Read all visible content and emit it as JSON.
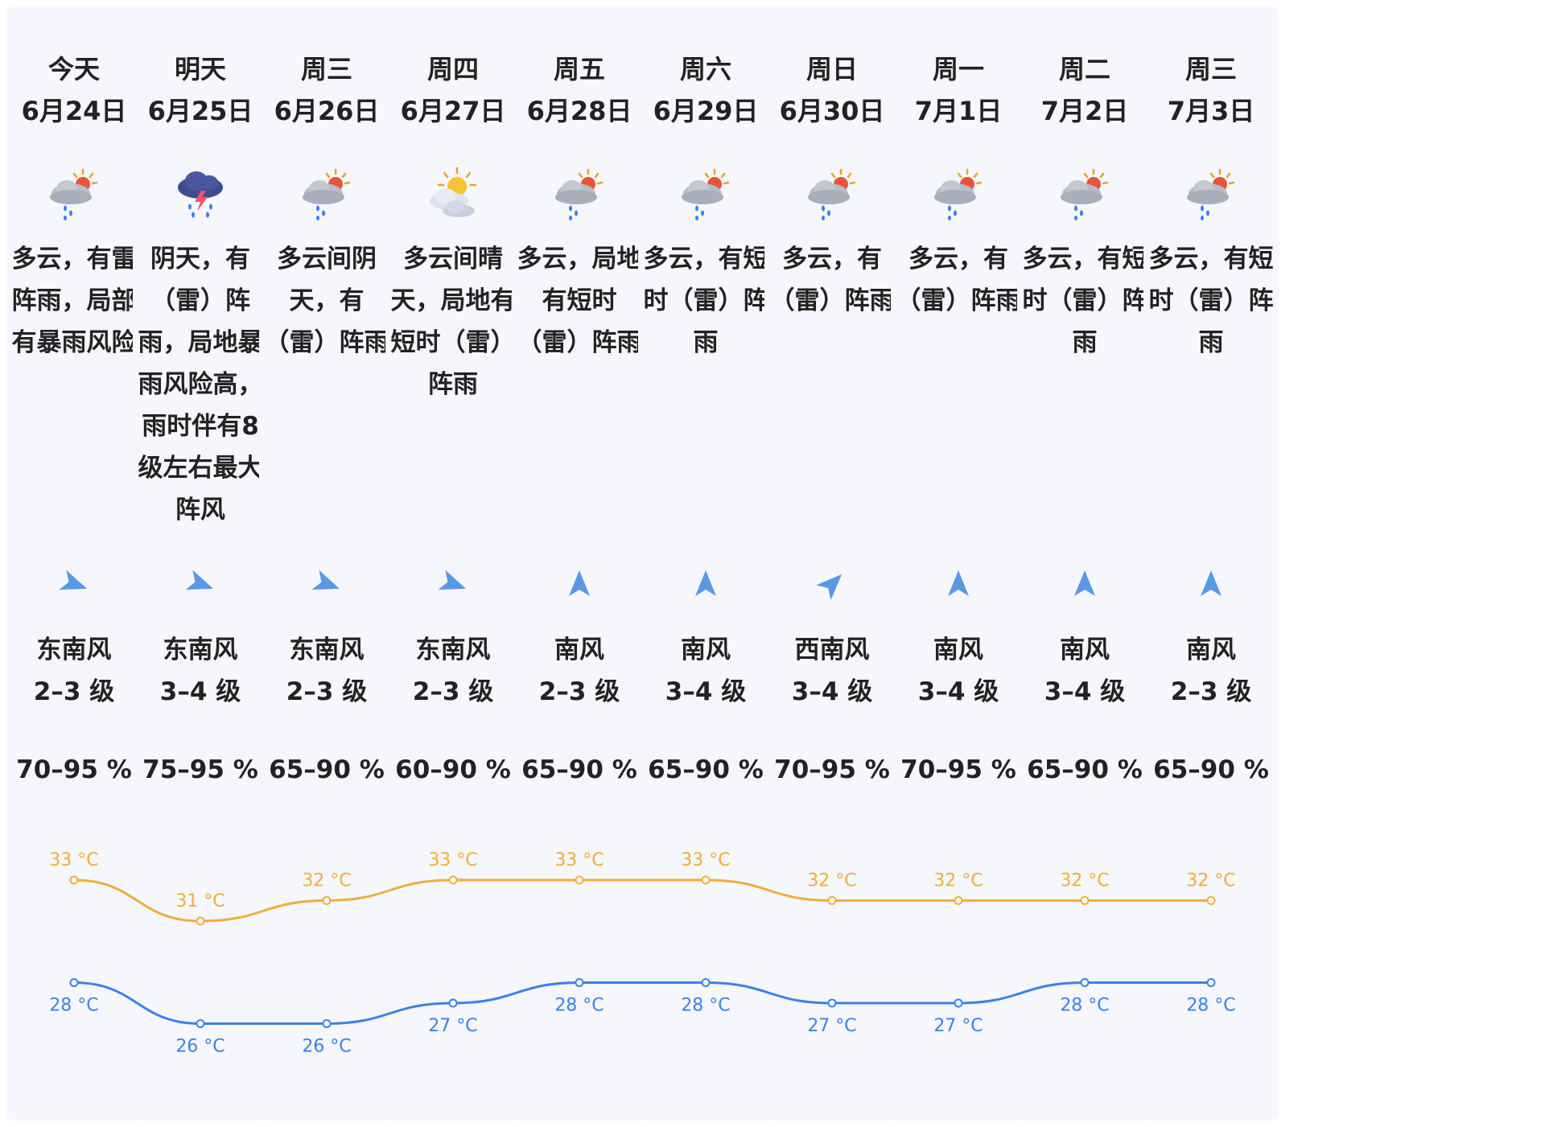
{
  "colors": {
    "high": "#f0ad3c",
    "low": "#3a82e8",
    "card": "#f5f7fc",
    "text": "#222222"
  },
  "days": [
    {
      "name": "今天",
      "date": "6月24日",
      "icon": "cloud-sun-rain-icon",
      "desc_lines": [
        "多云，有雷",
        "阵雨，局部",
        "有暴雨风险"
      ],
      "wind_dir": "东南风",
      "wind_level": "2–3 级",
      "wind_rotation": 110,
      "humidity": "70–95 %",
      "high": "33 °C",
      "low": "28 °C"
    },
    {
      "name": "明天",
      "date": "6月25日",
      "icon": "thunderstorm-icon",
      "desc_lines": [
        "阴天，有",
        "（雷）阵",
        "雨，局地暴",
        "雨风险高，",
        "雨时伴有8",
        "级左右最大",
        "阵风"
      ],
      "wind_dir": "东南风",
      "wind_level": "3–4 级",
      "wind_rotation": 110,
      "humidity": "75–95 %",
      "high": "31 °C",
      "low": "26 °C"
    },
    {
      "name": "周三",
      "date": "6月26日",
      "icon": "cloud-sun-rain-icon",
      "desc_lines": [
        "多云间阴",
        "天，有",
        "（雷）阵雨"
      ],
      "wind_dir": "东南风",
      "wind_level": "2–3 级",
      "wind_rotation": 110,
      "humidity": "65–90 %",
      "high": "32 °C",
      "low": "26 °C"
    },
    {
      "name": "周四",
      "date": "6月27日",
      "icon": "sun-cloud-icon",
      "desc_lines": [
        "多云间晴",
        "天，局地有",
        "短时（雷）",
        "阵雨"
      ],
      "wind_dir": "东南风",
      "wind_level": "2–3 级",
      "wind_rotation": 110,
      "humidity": "60–90 %",
      "high": "33 °C",
      "low": "27 °C"
    },
    {
      "name": "周五",
      "date": "6月28日",
      "icon": "cloud-sun-rain-icon",
      "desc_lines": [
        "多云，局地",
        "有短时",
        "（雷）阵雨"
      ],
      "wind_dir": "南风",
      "wind_level": "2–3 级",
      "wind_rotation": 0,
      "humidity": "65–90 %",
      "high": "33 °C",
      "low": "28 °C"
    },
    {
      "name": "周六",
      "date": "6月29日",
      "icon": "cloud-sun-rain-icon",
      "desc_lines": [
        "多云，有短",
        "时（雷）阵",
        "雨"
      ],
      "wind_dir": "南风",
      "wind_level": "3–4 级",
      "wind_rotation": 0,
      "humidity": "65–90 %",
      "high": "33 °C",
      "low": "28 °C"
    },
    {
      "name": "周日",
      "date": "6月30日",
      "icon": "cloud-sun-rain-icon",
      "desc_lines": [
        "多云，有",
        "（雷）阵雨"
      ],
      "wind_dir": "西南风",
      "wind_level": "3–4 级",
      "wind_rotation": 45,
      "humidity": "70–95 %",
      "high": "32 °C",
      "low": "27 °C"
    },
    {
      "name": "周一",
      "date": "7月1日",
      "icon": "cloud-sun-rain-icon",
      "desc_lines": [
        "多云，有",
        "（雷）阵雨"
      ],
      "wind_dir": "南风",
      "wind_level": "3–4 级",
      "wind_rotation": 0,
      "humidity": "70–95 %",
      "high": "32 °C",
      "low": "27 °C"
    },
    {
      "name": "周二",
      "date": "7月2日",
      "icon": "cloud-sun-rain-icon",
      "desc_lines": [
        "多云，有短",
        "时（雷）阵",
        "雨"
      ],
      "wind_dir": "南风",
      "wind_level": "3–4 级",
      "wind_rotation": 0,
      "humidity": "65–90 %",
      "high": "32 °C",
      "low": "28 °C"
    },
    {
      "name": "周三",
      "date": "7月3日",
      "icon": "cloud-sun-rain-icon",
      "desc_lines": [
        "多云，有短",
        "时（雷）阵",
        "雨"
      ],
      "wind_dir": "南风",
      "wind_level": "2–3 级",
      "wind_rotation": 0,
      "humidity": "65–90 %",
      "high": "32 °C",
      "low": "28 °C"
    }
  ],
  "chart_data": {
    "type": "line",
    "categories": [
      "6月24日",
      "6月25日",
      "6月26日",
      "6月27日",
      "6月28日",
      "6月29日",
      "6月30日",
      "7月1日",
      "7月2日",
      "7月3日"
    ],
    "series": [
      {
        "values": [
          33,
          31,
          32,
          33,
          33,
          33,
          32,
          32,
          32,
          32
        ],
        "color": "#f0ad3c",
        "labels": [
          "33 °C",
          "31 °C",
          "32 °C",
          "33 °C",
          "33 °C",
          "33 °C",
          "32 °C",
          "32 °C",
          "32 °C",
          "32 °C"
        ]
      },
      {
        "values": [
          28,
          26,
          26,
          27,
          28,
          28,
          27,
          27,
          28,
          28
        ],
        "color": "#3a82e8",
        "labels": [
          "28 °C",
          "26 °C",
          "26 °C",
          "27 °C",
          "28 °C",
          "28 °C",
          "27 °C",
          "27 °C",
          "28 °C",
          "28 °C"
        ]
      }
    ],
    "unit": "°C",
    "grid": false,
    "legend": "none"
  }
}
